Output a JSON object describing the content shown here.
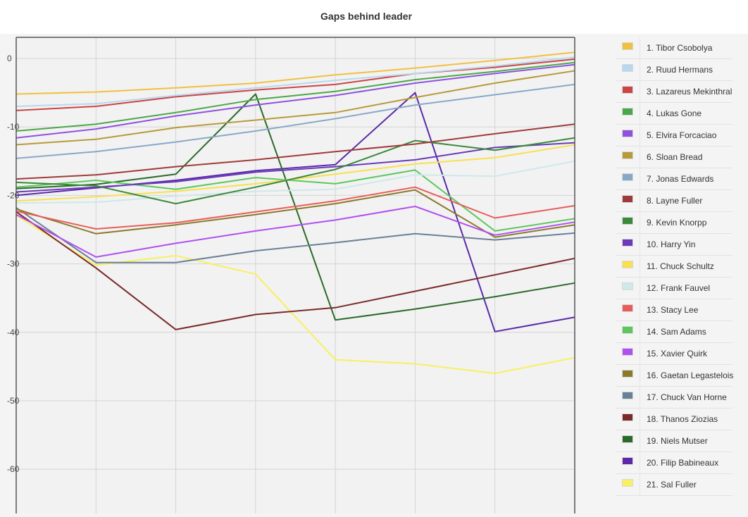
{
  "chart_data": {
    "type": "line",
    "title": "Gaps behind leader",
    "xlabel": "",
    "ylabel": "",
    "ylim": [
      -65,
      3
    ],
    "yticks": [
      0,
      -10,
      -20,
      -30,
      -40,
      -50,
      -60
    ],
    "ytick_labels": [
      "0",
      "-10",
      "-20",
      "-30",
      "-40",
      "-50",
      "-60"
    ],
    "x": [
      1,
      2,
      3,
      4,
      5,
      6,
      7,
      8
    ],
    "grid": true,
    "legend_position": "right",
    "series": [
      {
        "name": "1. Tibor Csobolya",
        "color": "#f0c040",
        "values": [
          -5.2,
          -4.9,
          -4.3,
          -3.6,
          -2.4,
          -1.4,
          -0.3,
          0.9
        ]
      },
      {
        "name": "2. Ruud Hermans",
        "color": "#b8d8ee",
        "values": [
          -7.0,
          -6.6,
          -5.4,
          -4.3,
          -3.2,
          -2.2,
          -1.1,
          0.2
        ]
      },
      {
        "name": "3. Lazareus Mekinthral",
        "color": "#cc4444",
        "values": [
          -7.6,
          -7.0,
          -5.6,
          -4.6,
          -3.8,
          -2.2,
          -1.3,
          -0.1
        ]
      },
      {
        "name": "4. Lukas Gone",
        "color": "#4aa84a",
        "values": [
          -10.6,
          -9.6,
          -7.9,
          -6.0,
          -4.8,
          -3.1,
          -1.9,
          -0.6
        ]
      },
      {
        "name": "5. Elvira Forcaciao",
        "color": "#9050e0",
        "values": [
          -11.6,
          -10.3,
          -8.4,
          -6.8,
          -5.4,
          -3.6,
          -2.2,
          -0.9
        ]
      },
      {
        "name": "6. Sloan Bread",
        "color": "#b89a3a",
        "values": [
          -12.6,
          -11.8,
          -10.1,
          -9.0,
          -7.9,
          -5.7,
          -3.6,
          -1.8
        ]
      },
      {
        "name": "7. Jonas Edwards",
        "color": "#88a8c8",
        "values": [
          -14.6,
          -13.6,
          -12.2,
          -10.6,
          -8.8,
          -6.8,
          -5.3,
          -3.8
        ]
      },
      {
        "name": "8. Layne Fuller",
        "color": "#a03a3a",
        "values": [
          -17.6,
          -17.0,
          -15.8,
          -14.8,
          -13.6,
          -12.5,
          -11.0,
          -9.6
        ]
      },
      {
        "name": "9. Kevin Knorpp",
        "color": "#3a8a3a",
        "values": [
          -18.1,
          -18.6,
          -21.2,
          -18.8,
          -16.2,
          -12.0,
          -13.4,
          -11.6
        ]
      },
      {
        "name": "10. Harry Yin",
        "color": "#6a3ab8",
        "values": [
          -19.5,
          -18.8,
          -18.0,
          -16.6,
          -15.8,
          -14.8,
          -13.0,
          -12.3
        ]
      },
      {
        "name": "11. Chuck Schultz",
        "color": "#f8e050",
        "values": [
          -20.8,
          -20.2,
          -19.4,
          -18.3,
          -16.9,
          -15.4,
          -14.5,
          -12.6
        ]
      },
      {
        "name": "12. Frank Fauvel",
        "color": "#cfe8ea",
        "values": [
          -21.1,
          -21.0,
          -20.1,
          -19.4,
          -19.1,
          -17.0,
          -17.2,
          -15.0
        ]
      },
      {
        "name": "13. Stacy Lee",
        "color": "#e85c5c",
        "values": [
          -22.3,
          -24.9,
          -24.0,
          -22.4,
          -20.8,
          -18.8,
          -23.3,
          -21.5
        ]
      },
      {
        "name": "14. Sam Adams",
        "color": "#5cc85c",
        "values": [
          -18.8,
          -17.8,
          -19.1,
          -17.4,
          -18.3,
          -16.3,
          -25.2,
          -23.4
        ]
      },
      {
        "name": "15. Xavier Quirk",
        "color": "#b050f0",
        "values": [
          -22.8,
          -29.0,
          -27.0,
          -25.2,
          -23.6,
          -21.6,
          -25.8,
          -23.9
        ]
      },
      {
        "name": "16. Gaetan Legastelois",
        "color": "#8a7a2a",
        "values": [
          -22.0,
          -25.6,
          -24.3,
          -22.8,
          -21.2,
          -19.2,
          -26.1,
          -24.3
        ]
      },
      {
        "name": "17. Chuck Van Horne",
        "color": "#6a8098",
        "values": [
          -21.8,
          -29.8,
          -29.8,
          -28.1,
          -26.9,
          -25.6,
          -26.5,
          -25.5
        ]
      },
      {
        "name": "18. Thanos Ziozias",
        "color": "#7a2a2a",
        "values": [
          -22.4,
          -30.6,
          -39.6,
          -37.4,
          -36.4,
          -34.0,
          -31.6,
          -29.2
        ]
      },
      {
        "name": "19. Niels Mutser",
        "color": "#2a6a2a",
        "values": [
          -19.0,
          -18.4,
          -16.9,
          -5.2,
          -38.2,
          -36.6,
          -34.8,
          -32.8
        ]
      },
      {
        "name": "20. Filip Babineaux",
        "color": "#5a2aa8",
        "values": [
          -20.0,
          -18.9,
          -17.8,
          -16.4,
          -15.5,
          -5.0,
          -39.9,
          -37.8
        ]
      },
      {
        "name": "21. Sal Fuller",
        "color": "#f8f060",
        "values": [
          -22.9,
          -30.2,
          -28.8,
          -31.5,
          -44.0,
          -44.6,
          -46.0,
          -43.7
        ]
      }
    ]
  }
}
